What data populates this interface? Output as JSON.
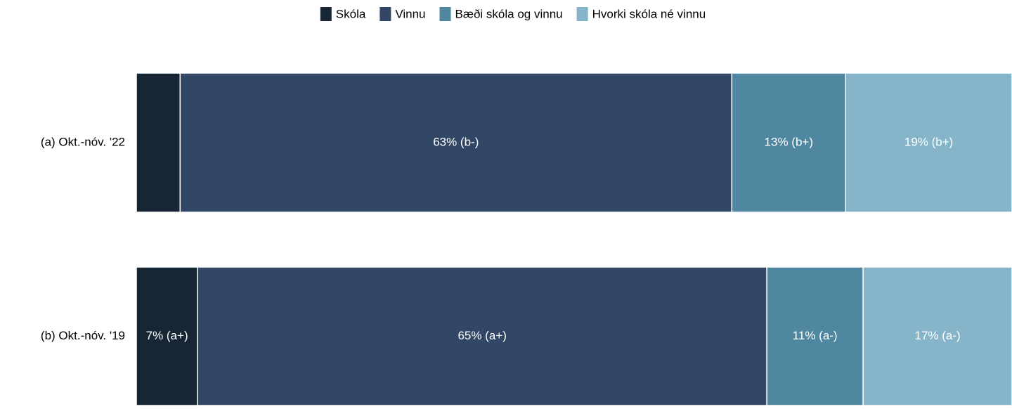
{
  "chart_data": {
    "type": "stacked-barh",
    "categories": [
      "(a) Okt.-nóv. '22",
      "(b) Okt.-nóv. '19"
    ],
    "series": [
      {
        "name": "Skóla",
        "color": "#172635",
        "values": [
          5,
          7
        ],
        "value_labels": [
          null,
          "7% (a+)"
        ]
      },
      {
        "name": "Vinnu",
        "color": "#324665",
        "values": [
          63,
          65
        ],
        "value_labels": [
          "63% (b-)",
          "65% (a+)"
        ]
      },
      {
        "name": "Bæði skóla og vinnu",
        "color": "#4f87a1",
        "values": [
          13,
          11
        ],
        "value_labels": [
          "13% (b+)",
          "11% (a-)"
        ]
      },
      {
        "name": "Hvorki skóla né vinnu",
        "color": "#86b5ca",
        "values": [
          19,
          17
        ],
        "value_labels": [
          "19% (b+)",
          "17% (a-)"
        ]
      }
    ],
    "xlim": [
      0,
      100
    ],
    "legend": "top"
  }
}
